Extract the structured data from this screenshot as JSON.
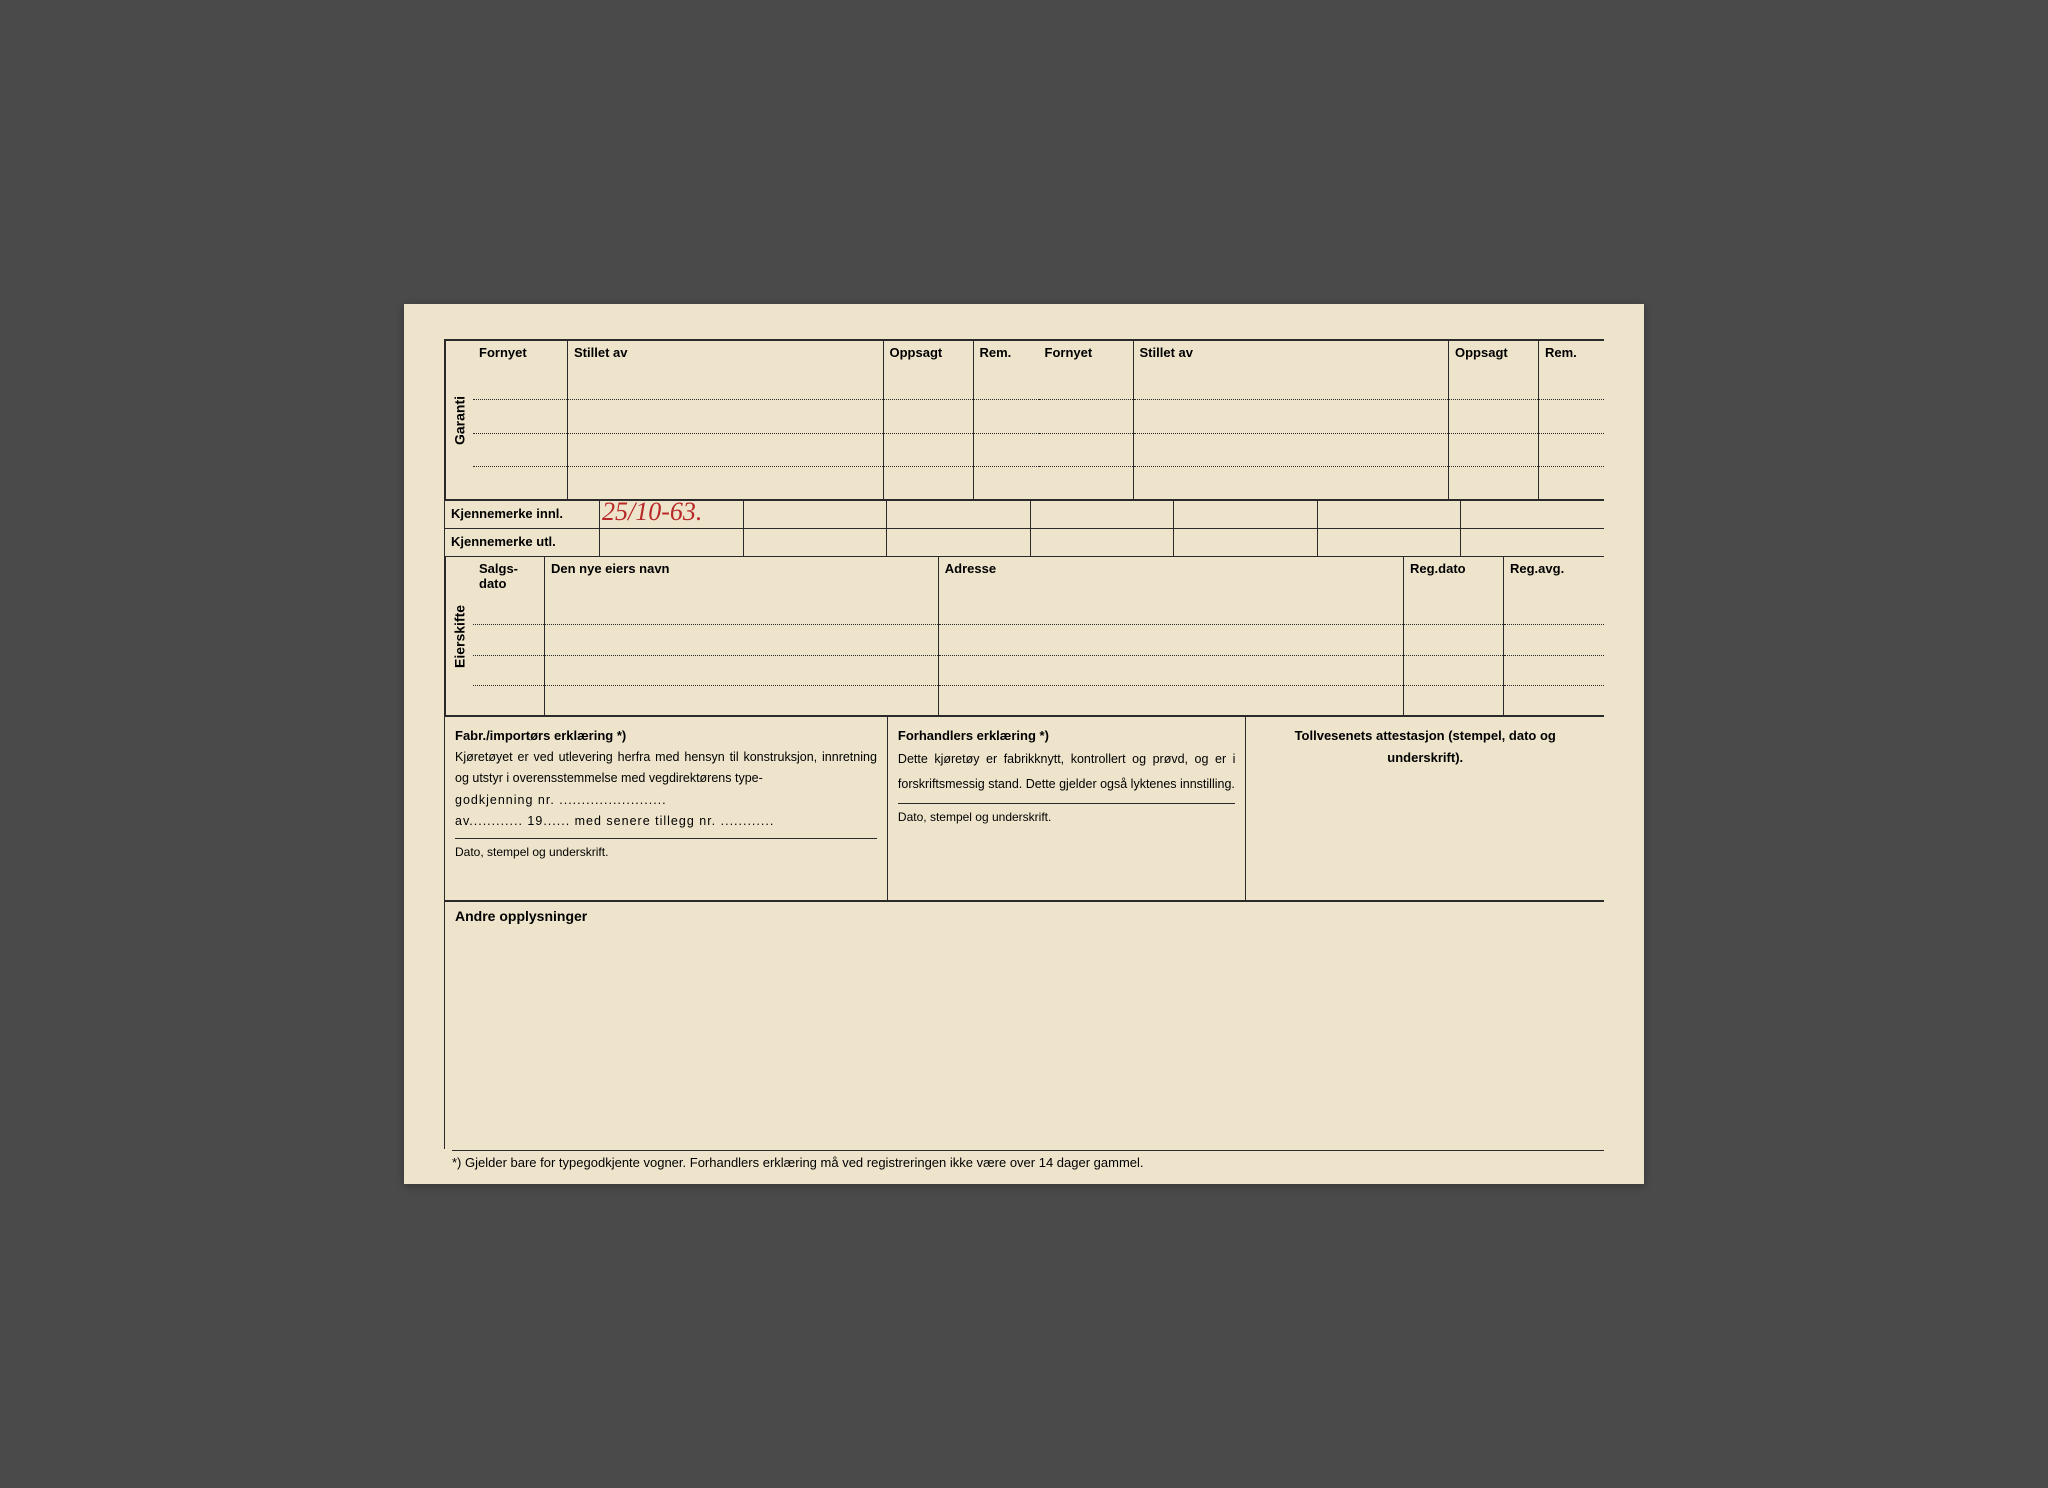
{
  "garanti": {
    "vlabel": "Garanti",
    "col_fornyet": "Fornyet",
    "col_stillet": "Stillet av",
    "col_oppsagt": "Oppsagt",
    "col_rem": "Rem."
  },
  "kjennemerke": {
    "innl_label": "Kjennemerke innl.",
    "innl_value": "25/10-63.",
    "utl_label": "Kjennemerke utl."
  },
  "eierskifte": {
    "vlabel": "Eierskifte",
    "col_salgs": "Salgs-dato",
    "col_navn": "Den nye eiers navn",
    "col_adresse": "Adresse",
    "col_regdato": "Reg.dato",
    "col_regavg": "Reg.avg."
  },
  "decl": {
    "fabr_title": "Fabr./importørs erklæring *)",
    "fabr_text1": "Kjøretøyet er ved utlevering herfra med hensyn til konstruksjon, innretning og utstyr i overensstemmelse med vegdirektørens type-",
    "fabr_text2": "godkjenning nr. ........................",
    "fabr_text3": "av............ 19...... med senere tillegg nr. ............",
    "fabr_sub": "Dato, stempel og underskrift.",
    "forh_title": "Forhandlers erklæring *)",
    "forh_text": "Dette kjøretøy er fabrikknytt, kontrollert og prøvd, og er i forskriftsmessig stand. Dette gjelder også lyktenes innstilling.",
    "forh_sub": "Dato, stempel og underskrift.",
    "toll_title": "Tollvesenets attestasjon (stempel, dato og underskrift)."
  },
  "andre": {
    "title": "Andre opplysninger"
  },
  "footnote": "*) Gjelder bare for typegodkjente vogner. Forhandlers erklæring må ved registreringen ikke være over 14 dager gammel."
}
